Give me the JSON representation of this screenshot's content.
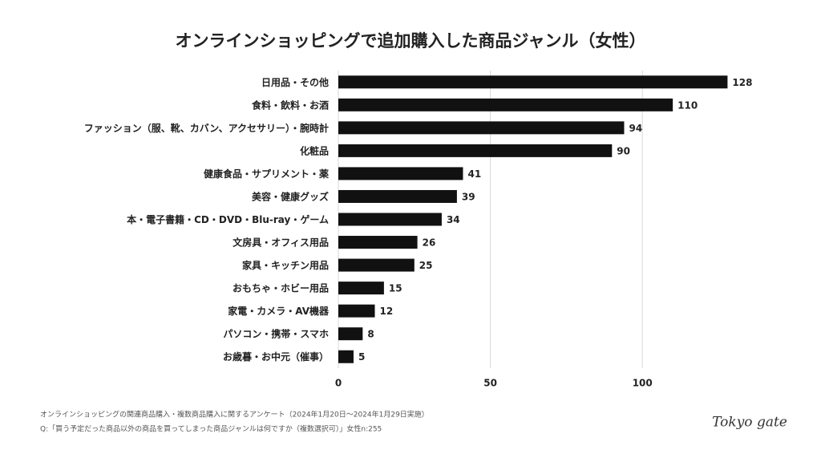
{
  "chart_data": {
    "type": "hbar",
    "title": "オンラインショッピングで追加購入した商品ジャンル（女性）",
    "categories": [
      "日用品・その他",
      "食料・飲料・お酒",
      "ファッション（服、靴、カバン、アクセサリー）・腕時計",
      "化粧品",
      "健康食品・サプリメント・薬",
      "美容・健康グッズ",
      "本・電子書籍・CD・DVD・Blu-ray・ゲーム",
      "文房具・オフィス用品",
      "家具・キッチン用品",
      "おもちゃ・ホビー用品",
      "家電・カメラ・AV機器",
      "パソコン・携帯・スマホ",
      "お歳暮・お中元（催事）"
    ],
    "values": [
      128,
      110,
      94,
      90,
      41,
      39,
      34,
      26,
      25,
      15,
      12,
      8,
      5
    ],
    "color": "#111111",
    "xlim": [
      0,
      130
    ],
    "xticks": [
      0,
      50,
      100
    ],
    "grid": true
  },
  "footer": {
    "source": "オンラインショッピングの関連商品購入・複数商品購入に関するアンケート（2024年1月20日〜2024年1月29日実施）",
    "question": "Q:「買う予定だった商品以外の商品を買ってしまった商品ジャンルは何ですか（複数選択可）」女性n:255",
    "logo": "Tokyo gate"
  }
}
